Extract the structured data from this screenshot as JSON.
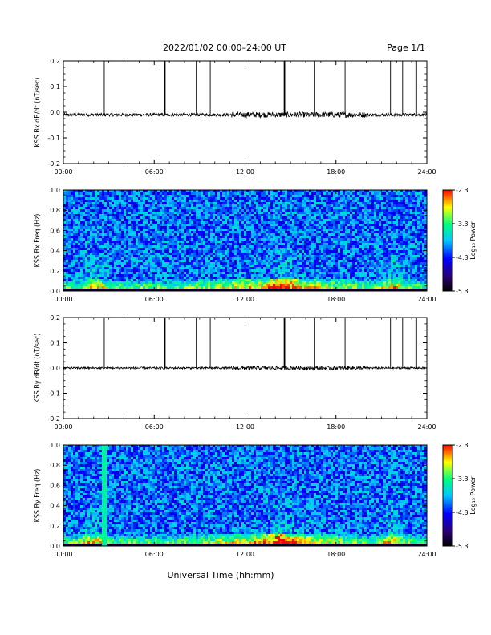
{
  "page": {
    "title": "2022/01/02  00:00–24:00 UT",
    "page_number": "Page 1/1",
    "x_axis_title": "Universal Time (hh:mm)"
  },
  "colors": {
    "trace": "#000000",
    "axes": "#000000",
    "colormap": [
      "#000000",
      "#2a0070",
      "#0000ff",
      "#00c8ff",
      "#00ff80",
      "#ffff00",
      "#ff0000"
    ]
  },
  "chart_data": [
    {
      "id": "bx-timeseries",
      "type": "line",
      "ylabel": "KSS Bx dB/dt (nT/sec)",
      "xlim": [
        0,
        24
      ],
      "ylim": [
        -0.2,
        0.2
      ],
      "x_ticks": [
        "00:00",
        "06:00",
        "12:00",
        "18:00",
        "24:00"
      ],
      "y_ticks": [
        "0.2",
        "0.1",
        "0.0",
        "-0.1",
        "-0.2"
      ],
      "baseline": -0.01,
      "noise_amplitude": 0.006,
      "spikes_hours": [
        2.7,
        6.7,
        8.8,
        9.7,
        14.6,
        16.6,
        18.6,
        21.6,
        22.4,
        23.3
      ],
      "spike_top": 0.2
    },
    {
      "id": "bx-spectrogram",
      "type": "heatmap",
      "ylabel": "KSS Bx Freq (Hz)",
      "xlim": [
        0,
        24
      ],
      "ylim": [
        0,
        1
      ],
      "x_ticks": [
        "00:00",
        "06:00",
        "12:00",
        "18:00",
        "24:00"
      ],
      "y_ticks": [
        "1.0",
        "0.8",
        "0.6",
        "0.4",
        "0.2",
        "0.0"
      ],
      "colorbar": {
        "label": "Log₁₀ Power",
        "range": [
          -5.3,
          -2.3
        ],
        "ticks": [
          "-2.3",
          "-3.3",
          "-4.3",
          "-5.3"
        ]
      },
      "enhanced_hours": [
        2.0,
        14.5,
        21.8
      ]
    },
    {
      "id": "by-timeseries",
      "type": "line",
      "ylabel": "KSS By dB/dt (nT/sec)",
      "xlim": [
        0,
        24
      ],
      "ylim": [
        -0.2,
        0.2
      ],
      "x_ticks": [
        "00:00",
        "06:00",
        "12:00",
        "18:00",
        "24:00"
      ],
      "y_ticks": [
        "0.2",
        "0.1",
        "0.0",
        "-0.1",
        "-0.2"
      ],
      "baseline": 0.0,
      "noise_amplitude": 0.004,
      "spikes_hours": [
        2.7,
        6.7,
        8.8,
        9.7,
        14.6,
        16.6,
        18.6,
        21.6,
        22.4,
        23.3
      ],
      "spike_top": 0.2
    },
    {
      "id": "by-spectrogram",
      "type": "heatmap",
      "ylabel": "KSS By Freq (Hz)",
      "xlim": [
        0,
        24
      ],
      "ylim": [
        0,
        1
      ],
      "x_ticks": [
        "00:00",
        "06:00",
        "12:00",
        "18:00",
        "24:00"
      ],
      "y_ticks": [
        "1.0",
        "0.8",
        "0.6",
        "0.4",
        "0.2",
        "0.0"
      ],
      "colorbar": {
        "label": "Log₁₀ Power",
        "range": [
          -5.3,
          -2.3
        ],
        "ticks": [
          "-2.3",
          "-3.3",
          "-4.3",
          "-5.3"
        ]
      },
      "enhanced_hours": [
        2.0,
        14.5,
        21.8
      ],
      "vertical_streak_hours": [
        2.7
      ]
    }
  ]
}
